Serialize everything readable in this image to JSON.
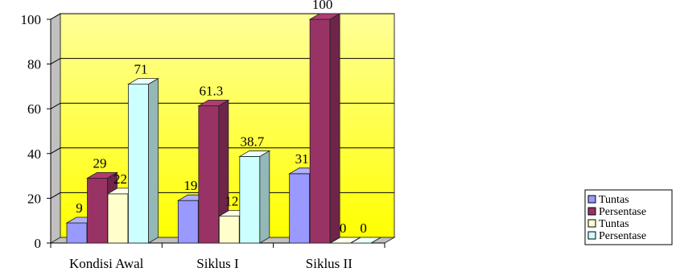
{
  "chart_data": {
    "type": "bar",
    "categories": [
      "Kondisi Awal",
      "Siklus I",
      "Siklus II"
    ],
    "series": [
      {
        "name": "Tuntas",
        "values": [
          9,
          19,
          31
        ],
        "color": "#9999ff"
      },
      {
        "name": "Persentase",
        "values": [
          29,
          61.3,
          100
        ],
        "color": "#993366"
      },
      {
        "name": "Tuntas",
        "values": [
          22,
          12,
          0
        ],
        "color": "#ffffcc"
      },
      {
        "name": "Persentase",
        "values": [
          71,
          38.7,
          0
        ],
        "color": "#ccffff"
      }
    ],
    "value_labels": [
      [
        "9",
        "19",
        "31"
      ],
      [
        "29",
        "61.3",
        "100"
      ],
      [
        "22",
        "12",
        "0"
      ],
      [
        "71",
        "38.7",
        "0"
      ]
    ],
    "yticks": [
      "0",
      "20",
      "40",
      "60",
      "80",
      "100"
    ],
    "ylim": [
      0,
      100
    ],
    "grid": true,
    "legend_position": "right",
    "plot_background": [
      "#ffff66",
      "#ffff00"
    ],
    "title": "",
    "xlabel": "",
    "ylabel": ""
  }
}
